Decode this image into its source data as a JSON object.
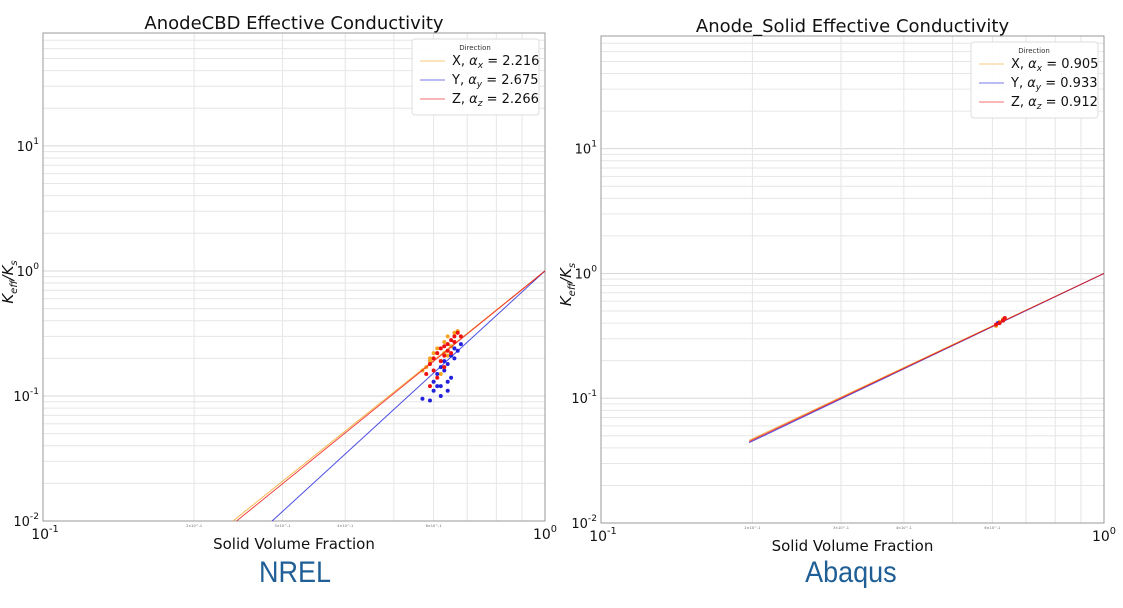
{
  "chart_data": [
    {
      "type": "scatter",
      "title": "AnodeCBD Effective Conductivity",
      "xlabel": "Solid Volume Fraction",
      "ylabel": "K_eff/K_s",
      "xscale": "log",
      "yscale": "log",
      "xlim": [
        0.1,
        1
      ],
      "ylim": [
        0.01,
        80
      ],
      "grid": true,
      "legend_position": "top-right",
      "legend_title": "Direction",
      "xticks": [
        "10^-1",
        "10^0"
      ],
      "xminor_ticks": [
        "2×10^-1",
        "3×10^-1",
        "4×10^-1",
        "6×10^-1"
      ],
      "yticks": [
        "10^-2",
        "10^-1",
        "10^0",
        "10^1"
      ],
      "caption": "NREL",
      "series": [
        {
          "name": "X",
          "alpha": "2.216",
          "sub": "x",
          "color": "#f5a623",
          "line": [
            [
              0.239,
              0.01
            ],
            [
              1,
              1
            ]
          ],
          "points": [
            [
              0.58,
              0.17
            ],
            [
              0.59,
              0.2
            ],
            [
              0.6,
              0.22
            ],
            [
              0.61,
              0.24
            ],
            [
              0.62,
              0.19
            ],
            [
              0.63,
              0.27
            ],
            [
              0.64,
              0.3
            ],
            [
              0.65,
              0.25
            ],
            [
              0.66,
              0.32
            ],
            [
              0.6,
              0.13
            ],
            [
              0.62,
              0.15
            ],
            [
              0.64,
              0.21
            ],
            [
              0.67,
              0.33
            ],
            [
              0.59,
              0.19
            ],
            [
              0.63,
              0.22
            ],
            [
              0.57,
              0.16
            ]
          ]
        },
        {
          "name": "Y",
          "alpha": "2.675",
          "sub": "y",
          "color": "#2222dd",
          "line": [
            [
              0.286,
              0.01
            ],
            [
              1,
              1
            ]
          ],
          "points": [
            [
              0.57,
              0.095
            ],
            [
              0.59,
              0.092
            ],
            [
              0.6,
              0.13
            ],
            [
              0.61,
              0.15
            ],
            [
              0.62,
              0.12
            ],
            [
              0.63,
              0.16
            ],
            [
              0.64,
              0.18
            ],
            [
              0.65,
              0.14
            ],
            [
              0.66,
              0.2
            ],
            [
              0.67,
              0.23
            ],
            [
              0.68,
              0.26
            ],
            [
              0.6,
              0.11
            ],
            [
              0.62,
              0.17
            ],
            [
              0.64,
              0.13
            ],
            [
              0.65,
              0.21
            ],
            [
              0.63,
              0.19
            ],
            [
              0.61,
              0.12
            ],
            [
              0.66,
              0.24
            ],
            [
              0.64,
              0.11
            ],
            [
              0.62,
              0.1
            ]
          ]
        },
        {
          "name": "Z",
          "alpha": "2.266",
          "sub": "z",
          "color": "#ee1111",
          "line": [
            [
              0.243,
              0.01
            ],
            [
              1,
              1
            ]
          ],
          "points": [
            [
              0.58,
              0.15
            ],
            [
              0.59,
              0.18
            ],
            [
              0.6,
              0.2
            ],
            [
              0.61,
              0.22
            ],
            [
              0.62,
              0.24
            ],
            [
              0.63,
              0.21
            ],
            [
              0.64,
              0.26
            ],
            [
              0.65,
              0.28
            ],
            [
              0.66,
              0.3
            ],
            [
              0.67,
              0.32
            ],
            [
              0.6,
              0.16
            ],
            [
              0.62,
              0.19
            ],
            [
              0.63,
              0.25
            ],
            [
              0.64,
              0.23
            ],
            [
              0.65,
              0.22
            ],
            [
              0.66,
              0.27
            ],
            [
              0.61,
              0.14
            ],
            [
              0.59,
              0.12
            ],
            [
              0.63,
              0.17
            ],
            [
              0.68,
              0.3
            ]
          ]
        }
      ]
    },
    {
      "type": "scatter",
      "title": "Anode_Solid Effective Conductivity",
      "xlabel": "Solid Volume Fraction",
      "ylabel": "K_eff/K_s",
      "xscale": "log",
      "yscale": "log",
      "xlim": [
        0.1,
        1
      ],
      "ylim": [
        0.01,
        80
      ],
      "grid": true,
      "legend_position": "top-right",
      "legend_title": "Direction",
      "xticks": [
        "10^-1",
        "10^0"
      ],
      "xminor_ticks": [
        "2×10^-1",
        "3×10^-1",
        "4×10^-1",
        "6×10^-1"
      ],
      "yticks": [
        "10^-2",
        "10^-1",
        "10^0",
        "10^1"
      ],
      "caption": "Abaqus",
      "series": [
        {
          "name": "X",
          "alpha": "0.905",
          "sub": "x",
          "color": "#f5a623",
          "line": [
            [
              0.197,
              0.046
            ],
            [
              1,
              1
            ]
          ],
          "points": [
            [
              0.61,
              0.38
            ],
            [
              0.62,
              0.41
            ],
            [
              0.63,
              0.43
            ]
          ]
        },
        {
          "name": "Y",
          "alpha": "0.933",
          "sub": "y",
          "color": "#2222dd",
          "line": [
            [
              0.197,
              0.044
            ],
            [
              1,
              1
            ]
          ],
          "points": [
            [
              0.615,
              0.4
            ],
            [
              0.63,
              0.42
            ]
          ]
        },
        {
          "name": "Z",
          "alpha": "0.912",
          "sub": "z",
          "color": "#ee1111",
          "line": [
            [
              0.197,
              0.045
            ],
            [
              1,
              1
            ]
          ],
          "points": [
            [
              0.61,
              0.39
            ],
            [
              0.62,
              0.4
            ],
            [
              0.63,
              0.42
            ],
            [
              0.635,
              0.44
            ]
          ]
        }
      ]
    }
  ]
}
